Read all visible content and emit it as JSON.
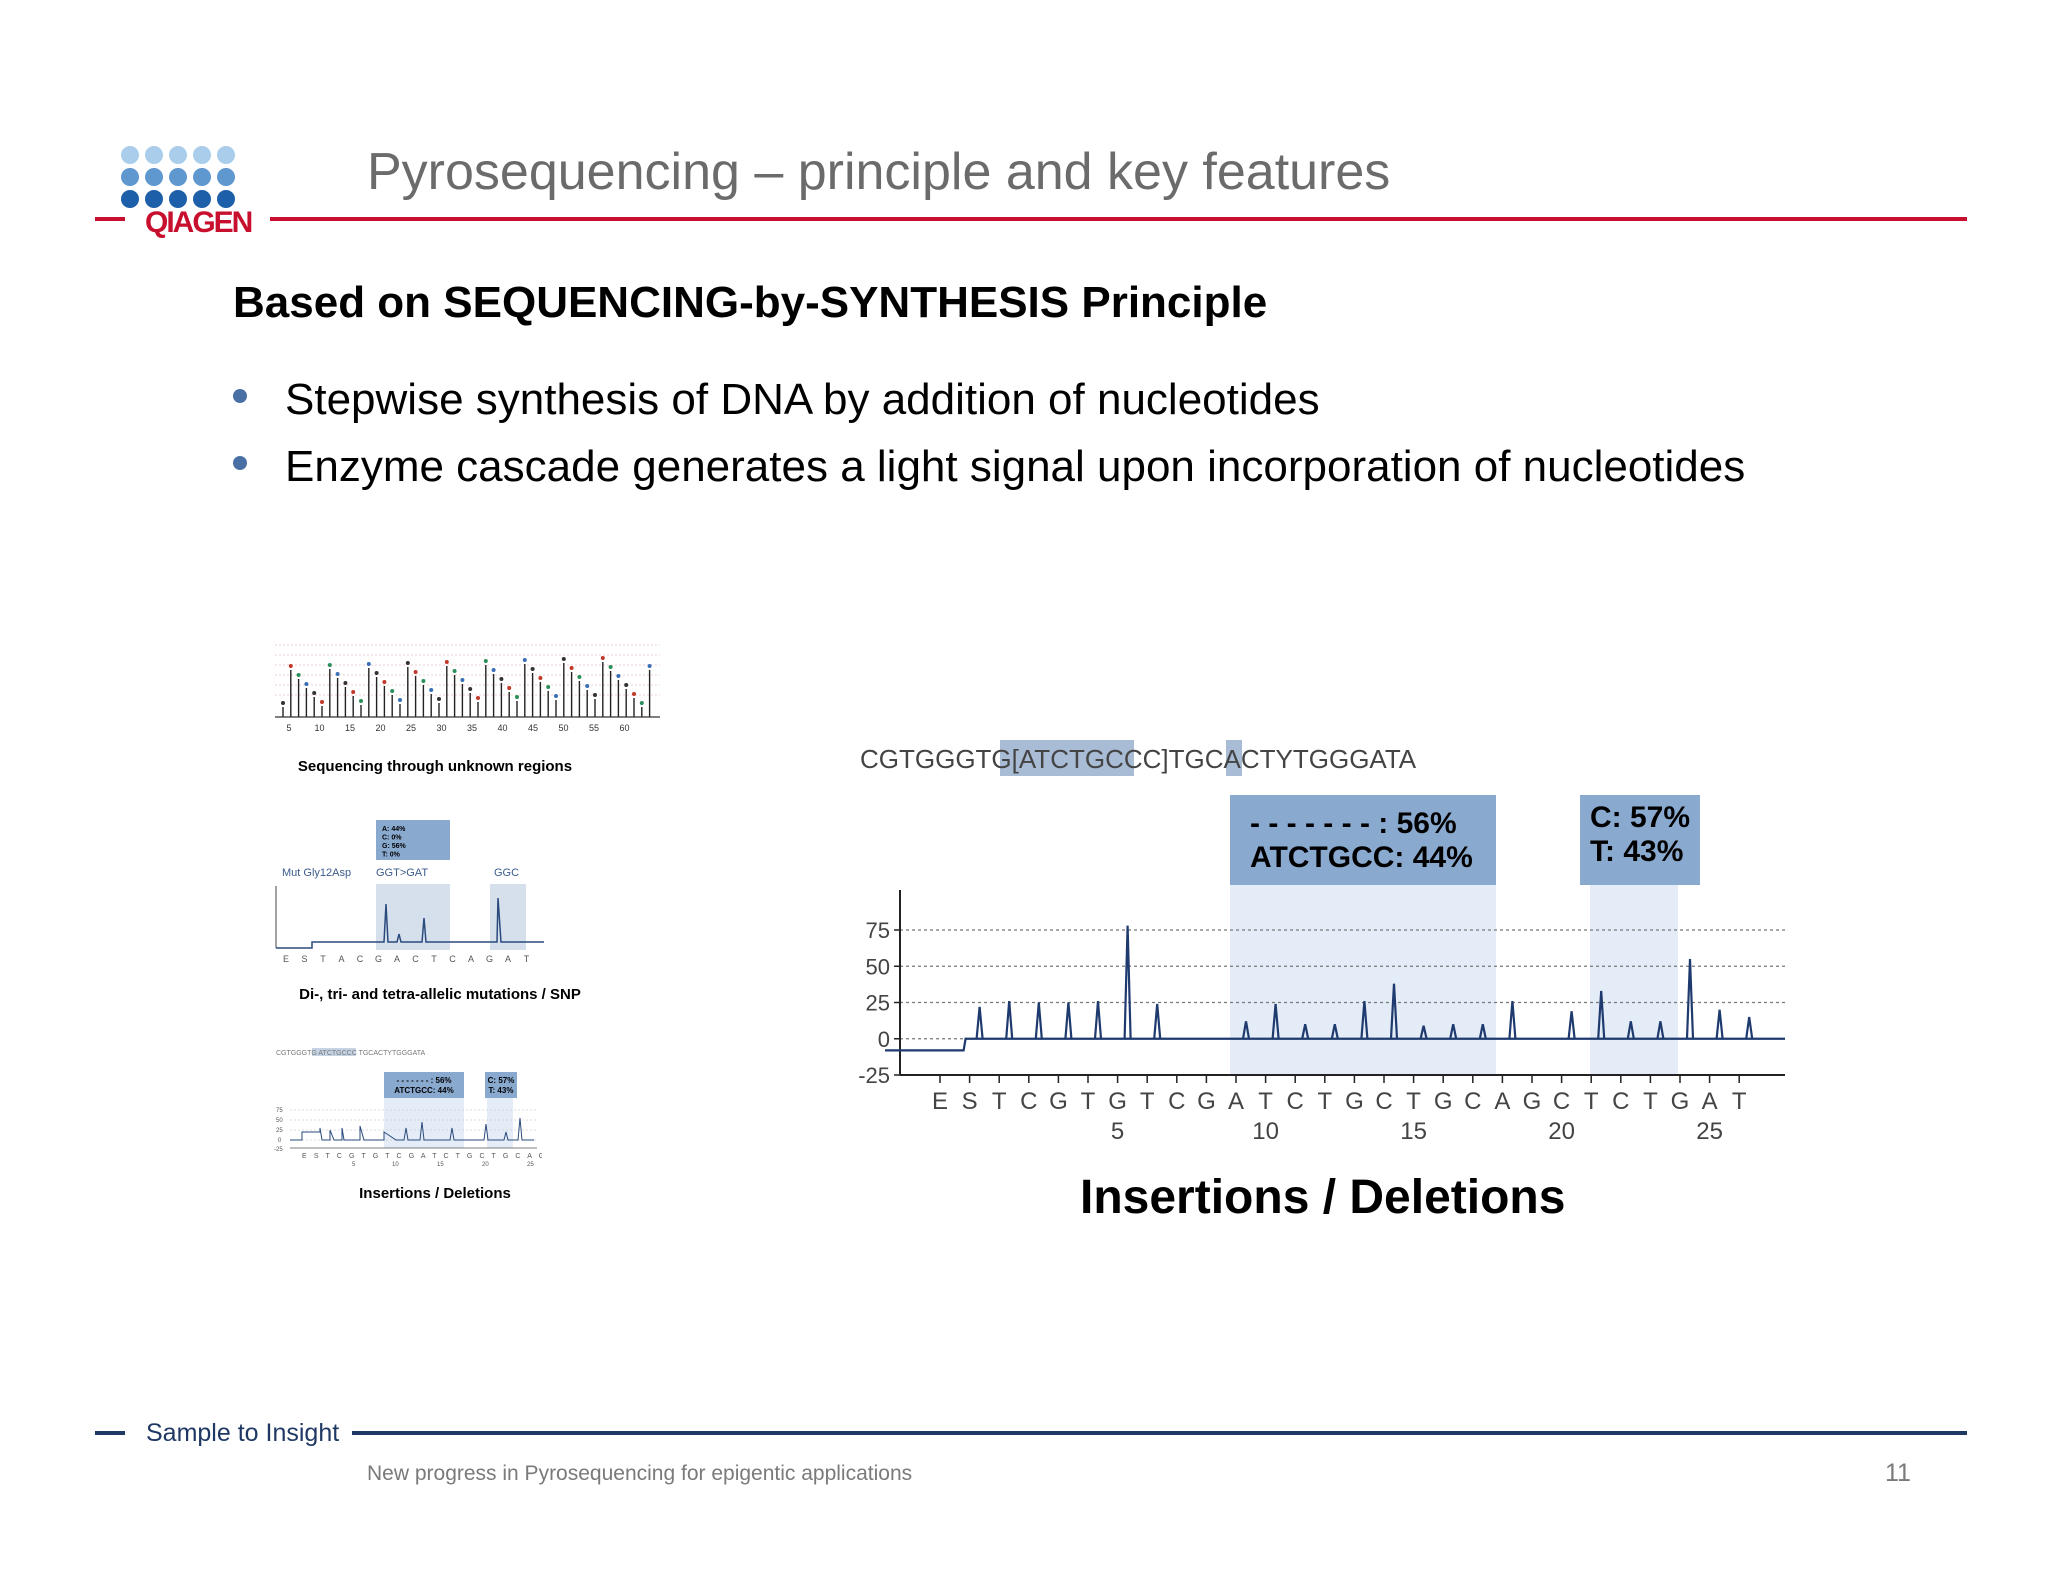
{
  "header": {
    "logo_text": "QIAGEN",
    "title": "Pyrosequencing – principle and key features"
  },
  "main": {
    "subtitle": "Based on SEQUENCING-by-SYNTHESIS Principle",
    "bullets": [
      "Stepwise synthesis of DNA by addition of nucleotides",
      "Enzyme cascade generates a light signal upon incorporation of nucleotides"
    ]
  },
  "thumbnails": [
    {
      "caption": "Sequencing through unknown regions",
      "ticks": [
        "5",
        "10",
        "15",
        "20",
        "25",
        "30",
        "35",
        "40",
        "45",
        "50",
        "55",
        "60"
      ]
    },
    {
      "caption": "Di-, tri- and tetra-allelic mutations / SNP",
      "mut_label": "Mut Gly12Asp",
      "region1": "GGT>GAT",
      "region2": "GGC",
      "box": [
        "A:  44%",
        "C:    0%",
        "G:  56%",
        "T:    0%"
      ],
      "dispensation": [
        "E",
        "S",
        "T",
        "A",
        "C",
        "G",
        "A",
        "C",
        "T",
        "C",
        "A",
        "G",
        "A",
        "T"
      ]
    },
    {
      "caption": "Insertions / Deletions",
      "box1": [
        "- - - - - - - : 56%",
        "ATCTGCC: 44%"
      ],
      "box2": [
        "C: 57%",
        "T: 43%"
      ]
    }
  ],
  "chart_data": {
    "type": "line",
    "title": "Insertions / Deletions",
    "sequence": "CGTGGGTG[ATCTGCCC]TGCACTYTGGGATA",
    "sequence_parts": [
      "CGTGGGTG",
      "[ATCTGCCC]",
      "TGCACT",
      "Y",
      "TGGGATA"
    ],
    "annotations": [
      {
        "lines": [
          "- - - - - - - : 56%",
          "ATCTGCC: 44%"
        ]
      },
      {
        "lines": [
          "C: 57%",
          "T: 43%"
        ]
      }
    ],
    "y_ticks": [
      "75",
      "50",
      "25",
      "0",
      "-25"
    ],
    "ylim": [
      -25,
      75
    ],
    "grid": true,
    "dispensation": [
      "E",
      "S",
      "T",
      "C",
      "G",
      "T",
      "G",
      "T",
      "C",
      "G",
      "A",
      "T",
      "C",
      "T",
      "G",
      "C",
      "T",
      "G",
      "C",
      "A",
      "G",
      "C",
      "T",
      "C",
      "T",
      "G",
      "A",
      "T"
    ],
    "x_ticks": [
      {
        "label": "5",
        "pos": 7
      },
      {
        "label": "10",
        "pos": 12
      },
      {
        "label": "15",
        "pos": 17
      },
      {
        "label": "20",
        "pos": 22
      },
      {
        "label": "25",
        "pos": 27
      }
    ],
    "peaks": [
      {
        "pos": 2,
        "value": 22
      },
      {
        "pos": 3,
        "value": 26
      },
      {
        "pos": 4,
        "value": 25
      },
      {
        "pos": 5,
        "value": 25
      },
      {
        "pos": 6,
        "value": 26
      },
      {
        "pos": 7,
        "value": 78
      },
      {
        "pos": 8,
        "value": 24
      },
      {
        "pos": 11,
        "value": 12
      },
      {
        "pos": 12,
        "value": 24
      },
      {
        "pos": 13,
        "value": 10
      },
      {
        "pos": 14,
        "value": 10
      },
      {
        "pos": 15,
        "value": 26
      },
      {
        "pos": 16,
        "value": 38
      },
      {
        "pos": 17,
        "value": 9
      },
      {
        "pos": 18,
        "value": 10
      },
      {
        "pos": 19,
        "value": 10
      },
      {
        "pos": 20,
        "value": 26
      },
      {
        "pos": 22,
        "value": 19
      },
      {
        "pos": 23,
        "value": 33
      },
      {
        "pos": 24,
        "value": 12
      },
      {
        "pos": 25,
        "value": 12
      },
      {
        "pos": 26,
        "value": 55
      },
      {
        "pos": 27,
        "value": 20
      },
      {
        "pos": 28,
        "value": 15
      }
    ]
  },
  "footer": {
    "tagline": "Sample to Insight",
    "text": "New progress in Pyrosequencing for epigentic applications",
    "page": "11"
  }
}
